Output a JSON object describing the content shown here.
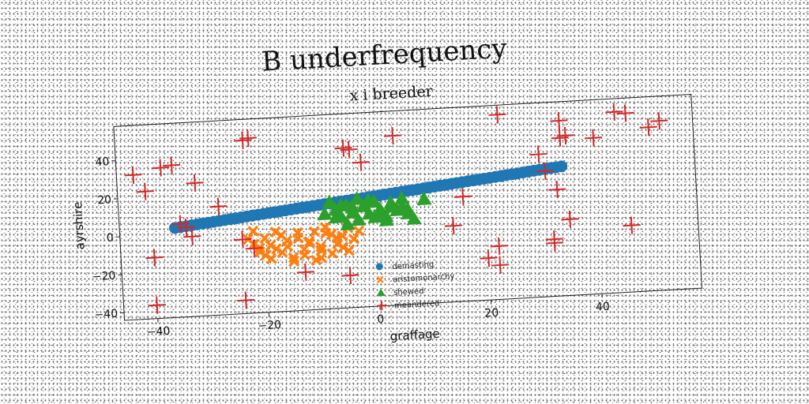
{
  "chart_data": {
    "type": "scatter",
    "title": "B underfrequency",
    "subtitle": "x i breeder",
    "xlabel": "graffage",
    "ylabel": "ayrshire",
    "xlim": [
      -46,
      58
    ],
    "ylim": [
      -44,
      58
    ],
    "xticks": [
      -40,
      -20,
      0,
      20,
      40
    ],
    "yticks": [
      -40,
      -20,
      0,
      20,
      40
    ],
    "grid": false,
    "legend_position": "center",
    "series": [
      {
        "name": "demasting",
        "marker": "circle",
        "color": "#1f77b4",
        "x": [
          -36,
          -35,
          -34,
          -33,
          -32,
          -31,
          -30,
          -29,
          -28,
          -27,
          -26,
          -25,
          -24,
          -23,
          -22,
          -21,
          -20,
          -19,
          -18,
          -17,
          -16,
          -15,
          -14,
          -13,
          -12,
          -11,
          -10,
          -9,
          -8,
          -7,
          -6,
          -5,
          -4,
          -3,
          -2,
          -1,
          0,
          1,
          2,
          3,
          4,
          5,
          6,
          7,
          8,
          9,
          10,
          11,
          12,
          13,
          14,
          15,
          16,
          17,
          18,
          19,
          20,
          21,
          22,
          23,
          24,
          25,
          26,
          27,
          28,
          29,
          30,
          31,
          32,
          33,
          34
        ],
        "y": [
          3,
          3.3,
          3.6,
          3.9,
          4.2,
          4.5,
          4.8,
          5.1,
          5.4,
          5.7,
          6,
          6.3,
          6.6,
          6.9,
          7.2,
          7.5,
          7.8,
          8.1,
          8.4,
          8.7,
          9,
          9.3,
          9.6,
          9.9,
          10.2,
          10.5,
          10.8,
          11.1,
          11.4,
          11.7,
          12,
          12.3,
          12.6,
          12.9,
          13.2,
          13.5,
          13.8,
          14.1,
          14.4,
          14.7,
          15,
          15.3,
          15.6,
          15.9,
          16.2,
          16.5,
          16.8,
          17.1,
          17.4,
          17.7,
          18,
          18.3,
          18.6,
          18.9,
          19.2,
          19.5,
          19.8,
          20.1,
          20.4,
          20.7,
          21,
          21.3,
          21.6,
          21.9,
          22.2,
          22.5,
          22.8,
          23.1,
          23.4,
          23.7,
          24
        ]
      },
      {
        "name": "aristomonarchy",
        "marker": "x-filled",
        "color": "#ff7f0e",
        "x": [
          -23,
          -22,
          -21,
          -20,
          -19,
          -18,
          -17,
          -16,
          -15,
          -14,
          -13,
          -12,
          -11,
          -10,
          -9,
          -8,
          -7,
          -6,
          -5,
          -4,
          -22,
          -20,
          -18,
          -16,
          -14,
          -12,
          -10,
          -8,
          -6,
          -15,
          -13,
          -11,
          -9,
          -7,
          -17,
          -19,
          -21,
          -5,
          -3,
          -10
        ],
        "y": [
          -5,
          -8,
          -12,
          -14,
          -9,
          -2,
          -4,
          -10,
          -16,
          -6,
          -12,
          -8,
          -18,
          -13,
          -4,
          -15,
          -10,
          -6,
          -2,
          -8,
          -1,
          -5,
          -11,
          -7,
          -3,
          -9,
          -11,
          -5,
          -12,
          -18,
          -15,
          -3,
          -1,
          -7,
          -13,
          -16,
          -10,
          -14,
          -4,
          -17
        ]
      },
      {
        "name": "shewed",
        "marker": "triangle",
        "color": "#2ca02c",
        "x": [
          -8,
          -7,
          -6,
          -5,
          -4,
          -3,
          -2,
          -1,
          0,
          1,
          2,
          3,
          4,
          5,
          6,
          7,
          -9,
          -6,
          -3,
          0,
          3,
          6,
          9,
          -7,
          -4,
          -1,
          2,
          5,
          -5,
          1
        ],
        "y": [
          12,
          8,
          4,
          10,
          6,
          2,
          9,
          5,
          11,
          7,
          3,
          10,
          6,
          12,
          4,
          1,
          6,
          10,
          13,
          3,
          8,
          6,
          11,
          4,
          9,
          12,
          1,
          8,
          0,
          5
        ]
      },
      {
        "name": "meandered",
        "marker": "plus",
        "color": "#d62728",
        "x": [
          -43,
          -41,
          -38,
          -36,
          -32,
          -40,
          -33,
          -35,
          -34,
          -28,
          -24,
          -22,
          -23,
          -24,
          -13,
          -5,
          -4,
          -2,
          -5,
          4,
          14,
          16,
          20,
          22,
          22,
          23,
          30,
          31,
          33,
          32,
          32,
          34,
          34,
          35,
          35,
          40,
          44,
          46,
          46,
          50,
          52,
          -40,
          -22
        ],
        "y": [
          32,
          23,
          35,
          36,
          26,
          -12,
          -2,
          5,
          3,
          13,
          -5,
          48,
          47,
          -37,
          -24,
          40,
          39,
          32,
          -27,
          45,
          -4,
          11,
          -22,
          -26,
          -16,
          53,
          31,
          22,
          12,
          -16,
          -14,
          39,
          48,
          40,
          -4,
          38,
          51,
          50,
          -9,
          42,
          45,
          -37,
          -10
        ]
      }
    ]
  }
}
